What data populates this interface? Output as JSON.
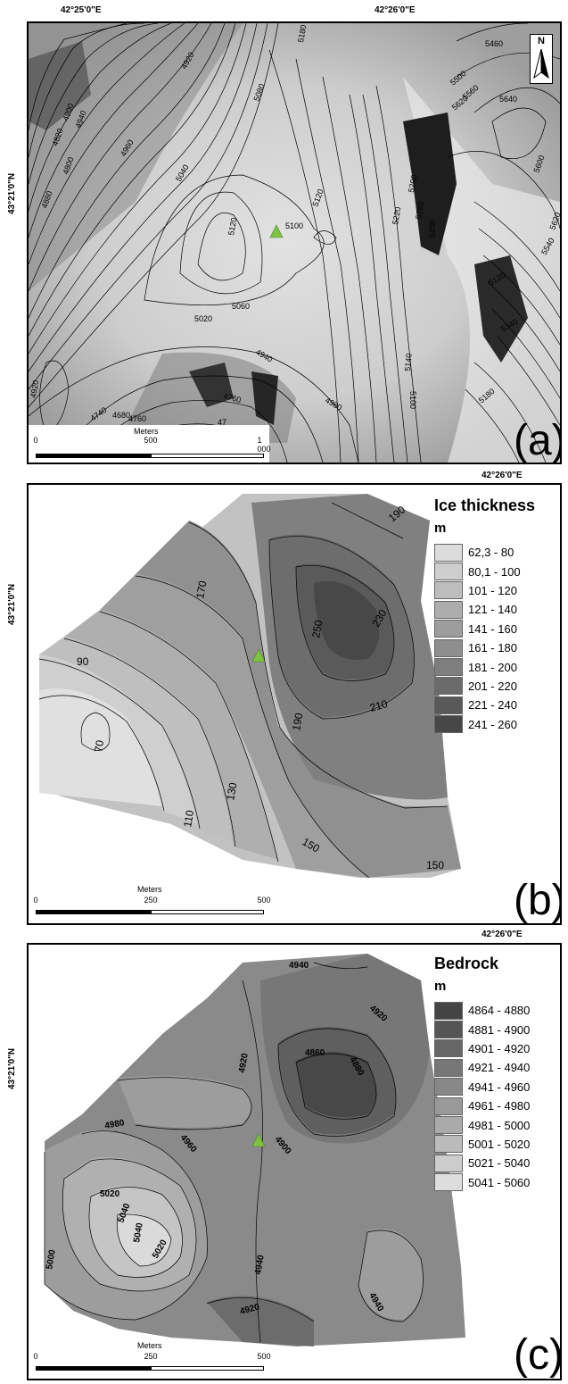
{
  "top_coords": {
    "lon_1": "42°25'0\"E",
    "lon_2": "42°26'0\"E",
    "lon_3": "42°26'0\"E",
    "lon_4": "42°26'0\"E",
    "lat_a": "43°21'0\"N",
    "lat_b": "43°21'0\"N",
    "lat_c": "43°21'0\"N"
  },
  "panel_a": {
    "letter": "(a)",
    "north": "N",
    "scale": {
      "title": "Meters",
      "ticks": [
        "0",
        "500",
        "1 000"
      ]
    },
    "contour_labels": [
      "5180",
      "5460",
      "5500",
      "5560",
      "5620",
      "5640",
      "4920",
      "4900",
      "4940",
      "4820",
      "5080",
      "4960",
      "5040",
      "4800",
      "4880",
      "5100",
      "5120",
      "5120",
      "5200",
      "5220",
      "5260",
      "5200",
      "5600",
      "5620",
      "5540",
      "5020",
      "5060",
      "5120",
      "5340",
      "4940",
      "4920",
      "4760",
      "4740",
      "4760",
      "4680",
      "4980",
      "5140",
      "5100",
      "5180",
      "47"
    ],
    "marker_colors": {
      "triangle": "#7dc242"
    }
  },
  "panel_b": {
    "letter": "(b)",
    "legend_title": "Ice thickness",
    "legend_unit": "m",
    "legend": [
      {
        "label": "62,3 - 80",
        "color": "#dcdcdc"
      },
      {
        "label": "80,1 - 100",
        "color": "#cecece"
      },
      {
        "label": "101 - 120",
        "color": "#bdbdbd"
      },
      {
        "label": "121 - 140",
        "color": "#adadad"
      },
      {
        "label": "141 - 160",
        "color": "#9d9d9d"
      },
      {
        "label": "161 - 180",
        "color": "#8e8e8e"
      },
      {
        "label": "181 - 200",
        "color": "#7e7e7e"
      },
      {
        "label": "201 - 220",
        "color": "#6b6b6b"
      },
      {
        "label": "221 - 240",
        "color": "#595959"
      },
      {
        "label": "241 - 260",
        "color": "#474747"
      }
    ],
    "contour_labels": [
      "190",
      "170",
      "250",
      "230",
      "90",
      "210",
      "190",
      "70",
      "130",
      "110",
      "150",
      "150"
    ],
    "scale": {
      "title": "Meters",
      "ticks": [
        "0",
        "250",
        "500"
      ]
    }
  },
  "panel_c": {
    "letter": "(c)",
    "legend_title": "Bedrock",
    "legend_unit": "m",
    "legend": [
      {
        "label": "4864 - 4880",
        "color": "#444444"
      },
      {
        "label": "4881 - 4900",
        "color": "#555555"
      },
      {
        "label": "4901 - 4920",
        "color": "#666666"
      },
      {
        "label": "4921 - 4940",
        "color": "#777777"
      },
      {
        "label": "4941 - 4960",
        "color": "#888888"
      },
      {
        "label": "4961 - 4980",
        "color": "#999999"
      },
      {
        "label": "4981 - 5000",
        "color": "#aaaaaa"
      },
      {
        "label": "5001 - 5020",
        "color": "#bbbbbb"
      },
      {
        "label": "5021 - 5040",
        "color": "#cccccc"
      },
      {
        "label": "5041 - 5060",
        "color": "#dddddd"
      }
    ],
    "contour_labels": [
      "4940",
      "4920",
      "4920",
      "4860",
      "4880",
      "4980",
      "4960",
      "4900",
      "5020",
      "5040",
      "5040",
      "5000",
      "5020",
      "4940",
      "4940",
      "4920"
    ],
    "scale": {
      "title": "Meters",
      "ticks": [
        "0",
        "250",
        "500"
      ]
    }
  }
}
